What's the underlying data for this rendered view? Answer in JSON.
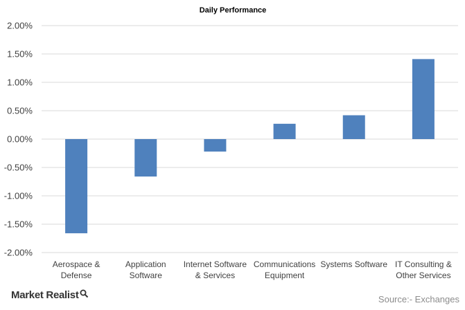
{
  "chart_data": {
    "type": "bar",
    "title": "Daily Performance",
    "categories": [
      [
        "Aerospace &",
        "Defense"
      ],
      [
        "Application",
        "Software"
      ],
      [
        "Internet Software",
        "& Services"
      ],
      [
        "Communications",
        "Equipment"
      ],
      [
        "Systems Software"
      ],
      [
        "IT Consulting &",
        "Other Services"
      ]
    ],
    "values": [
      -1.66,
      -0.66,
      -0.22,
      0.27,
      0.42,
      1.41
    ],
    "ylim": [
      -2.0,
      2.0
    ],
    "yticks": [
      "2.00%",
      "1.50%",
      "1.00%",
      "0.50%",
      "0.00%",
      "-0.50%",
      "-1.00%",
      "-1.50%",
      "-2.00%"
    ],
    "xlabel": "",
    "ylabel": "",
    "grid": true,
    "bar_color": "#4f81bd",
    "grid_color": "#d9d9d9"
  },
  "footer": {
    "brand": "Market Realist",
    "brand_icon": "magnifier-icon",
    "source": "Source:- Exchanges"
  }
}
